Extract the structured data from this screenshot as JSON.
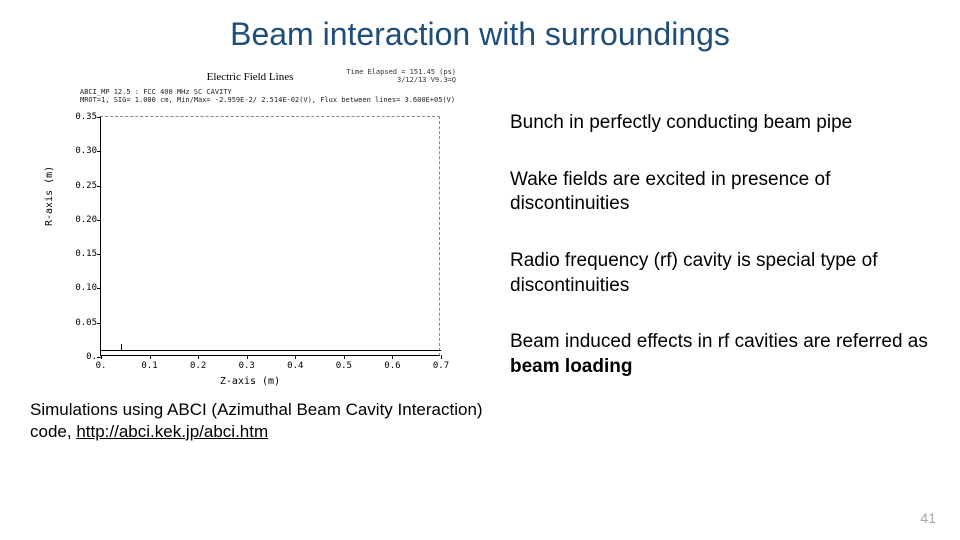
{
  "title": "Beam interaction with surroundings",
  "figure": {
    "title": "Electric Field Lines",
    "meta_right_1": "Time Elapsed = 151.45 (ps)",
    "meta_right_2": "3/12/13   V9.3=Q",
    "meta_left_1": "ABCI_MP 12.5 : FCC 400 MHz SC CAVITY",
    "meta_left_2": "MROT=1, SIG= 1.000 cm, Min/Max= -2.959E-2/ 2.514E-02(V), Flux between lines= 3.600E+05(V)",
    "yaxis_label": "R-axis (m)",
    "xaxis_label": "Z-axis (m)",
    "yticks": [
      "0.",
      "0.05",
      "0.10",
      "0.15",
      "0.20",
      "0.25",
      "0.30",
      "0.35"
    ],
    "xticks": [
      "0.",
      "0.1",
      "0.2",
      "0.3",
      "0.4",
      "0.5",
      "0.6",
      "0.7"
    ],
    "xlim": [
      0,
      0.7
    ],
    "ylim": [
      0,
      0.35
    ],
    "pipe_r": 0.01,
    "pipe_z_end": 0.7,
    "colors": {
      "axis": "#000000",
      "dashed": "#888888",
      "text": "#000000"
    }
  },
  "bullets": {
    "b1": "Bunch in perfectly conducting beam pipe",
    "b2": "Wake fields are excited in presence of discontinuities",
    "b3": "Radio frequency (rf) cavity is special type of discontinuities",
    "b4_a": "Beam induced effects in rf cavities are referred as ",
    "b4_b": "beam loading"
  },
  "caption": {
    "text": "Simulations using ABCI (Azimuthal Beam Cavity Interaction) code, ",
    "link": "http://abci.kek.jp/abci.htm"
  },
  "page_number": "41"
}
